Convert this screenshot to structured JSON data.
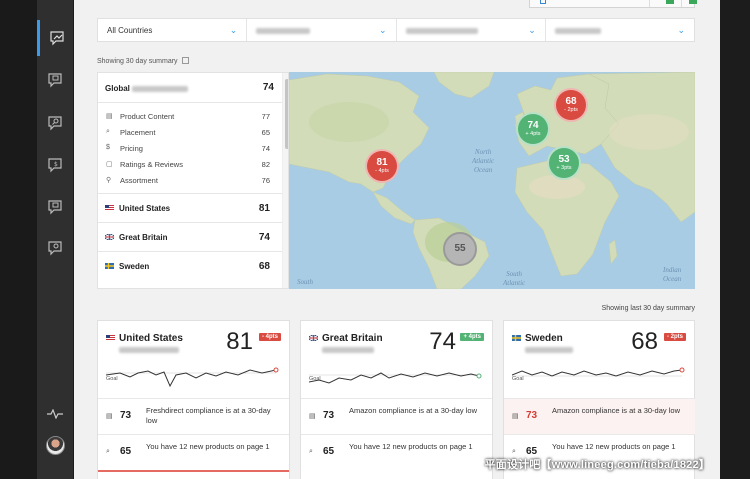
{
  "colors": {
    "accent": "#3b9be8",
    "good": "#52b374",
    "bad": "#d94a40",
    "neutral": "#b5b5b5"
  },
  "sidebar": {
    "items": [
      {
        "name": "sidebar-item-overview",
        "icon": "chart-icon",
        "active": true
      },
      {
        "name": "sidebar-item-content",
        "icon": "content-icon"
      },
      {
        "name": "sidebar-item-search",
        "icon": "search-icon"
      },
      {
        "name": "sidebar-item-pricing",
        "icon": "pricing-icon"
      },
      {
        "name": "sidebar-item-reviews",
        "icon": "reviews-icon"
      },
      {
        "name": "sidebar-item-assortment",
        "icon": "assortment-icon"
      }
    ]
  },
  "filters": {
    "country": "All Countries"
  },
  "summary_label": "Showing 30 day summary",
  "global": {
    "label": "Global",
    "value": "74"
  },
  "metrics": [
    {
      "label": "Product Content",
      "value": "77",
      "icon": "▤"
    },
    {
      "label": "Placement",
      "value": "65",
      "icon": "⌕"
    },
    {
      "label": "Pricing",
      "value": "74",
      "icon": "$"
    },
    {
      "label": "Ratings & Reviews",
      "value": "82",
      "icon": "▢"
    },
    {
      "label": "Assortment",
      "value": "76",
      "icon": "⚲"
    }
  ],
  "countries": [
    {
      "name": "United States",
      "value": "81"
    },
    {
      "name": "Great Britain",
      "value": "74"
    },
    {
      "name": "Sweden",
      "value": "68"
    }
  ],
  "map": {
    "labels": {
      "north_atlantic": "North\nAtlantic\nOcean",
      "south_atlantic": "South\nAtlantic\nOcean",
      "indian": "Indian\nOcean",
      "south": "South"
    },
    "bubbles": [
      {
        "value": "68",
        "delta": "- 2pts",
        "status": "bad"
      },
      {
        "value": "74",
        "delta": "+ 4pts",
        "status": "good"
      },
      {
        "value": "81",
        "delta": "- 4pts",
        "status": "bad"
      },
      {
        "value": "53",
        "delta": "+ 3pts",
        "status": "good"
      },
      {
        "value": "55",
        "delta": "",
        "status": "neutral"
      }
    ]
  },
  "showing_last": "Showing last 30 day summary",
  "cards": [
    {
      "country": "United States",
      "score": "81",
      "badge": "- 4pts",
      "badge_status": "bad",
      "goal": "Goal",
      "alerts": [
        {
          "num": "73",
          "text": "Freshdirect compliance is at a 30-day low",
          "icon": "▤",
          "warn": false
        },
        {
          "num": "65",
          "text": "You have 12 new products on page 1",
          "icon": "⌕",
          "warn": false
        }
      ]
    },
    {
      "country": "Great Britain",
      "score": "74",
      "badge": "+ 4pts",
      "badge_status": "good",
      "goal": "Goal",
      "alerts": [
        {
          "num": "73",
          "text": "Amazon compliance is at a 30-day low",
          "icon": "▤",
          "warn": false
        },
        {
          "num": "65",
          "text": "You have 12 new products on page 1",
          "icon": "⌕",
          "warn": false
        }
      ]
    },
    {
      "country": "Sweden",
      "score": "68",
      "badge": "- 2pts",
      "badge_status": "bad",
      "goal": "Goal",
      "alerts": [
        {
          "num": "73",
          "text": "Amazon compliance is at a 30-day low",
          "icon": "▤",
          "warn": true
        },
        {
          "num": "65",
          "text": "You have 12 new products on page 1",
          "icon": "⌕",
          "warn": false
        }
      ]
    }
  ],
  "watermark": "平面设计吧【www.lineeg.com/tieba/1822】"
}
